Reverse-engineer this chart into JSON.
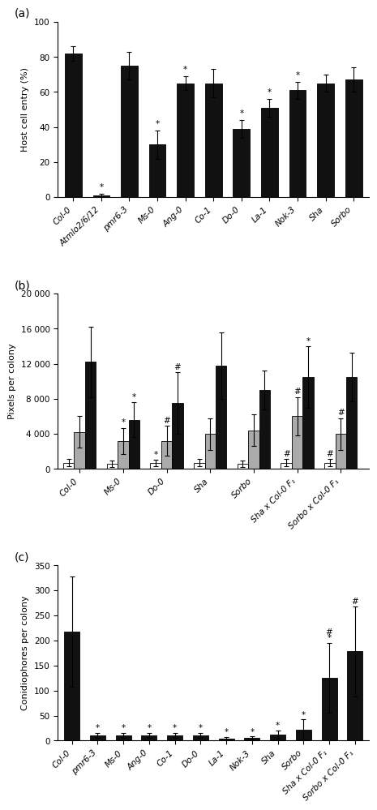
{
  "panel_a": {
    "categories": [
      "Col-0",
      "Atmlo2/6/12",
      "pmr6-3",
      "Ms-0",
      "Ang-0",
      "Co-1",
      "Do-0",
      "La-1",
      "Nok-3",
      "Sha",
      "Sorbo"
    ],
    "values": [
      82,
      1,
      75,
      30,
      65,
      65,
      39,
      51,
      61,
      65,
      67
    ],
    "errors": [
      4,
      1,
      8,
      8,
      4,
      8,
      5,
      5,
      5,
      5,
      7
    ],
    "ylabel": "Host cell entry (%)",
    "ylim": [
      0,
      100
    ],
    "yticks": [
      0,
      20,
      40,
      60,
      80,
      100
    ],
    "ast_symbols": [
      "",
      "*",
      "",
      "*",
      "*",
      "",
      "*",
      "*",
      "*",
      "",
      ""
    ]
  },
  "panel_b": {
    "categories": [
      "Col-0",
      "Ms-0",
      "Do-0",
      "Sha",
      "Sorbo",
      "Sha x Col-0 F₁",
      "Sorbo x Col-0 F₁"
    ],
    "values_white": [
      700,
      600,
      700,
      700,
      600,
      700,
      700
    ],
    "values_gray": [
      4200,
      3200,
      3200,
      4000,
      4400,
      6000,
      4000
    ],
    "values_black": [
      12200,
      5600,
      7500,
      11800,
      9000,
      10500,
      10500
    ],
    "errors_white": [
      400,
      350,
      350,
      400,
      400,
      400,
      400
    ],
    "errors_gray": [
      1800,
      1500,
      1700,
      1800,
      1800,
      2200,
      1800
    ],
    "errors_black": [
      4000,
      2000,
      3500,
      3800,
      2200,
      3500,
      2800
    ],
    "ylabel": "Pixels per colony",
    "ylim": [
      0,
      20000
    ],
    "yticks": [
      0,
      4000,
      8000,
      12000,
      16000,
      20000
    ],
    "ytick_labels": [
      "0",
      "4 000",
      "8 000",
      "12 000",
      "16 000",
      "20 000"
    ],
    "ast_black": [
      "",
      "*",
      "#",
      "",
      "",
      "*",
      ""
    ],
    "ast_gray": [
      "",
      "*",
      "#",
      "",
      "",
      "#",
      "#"
    ],
    "ast_white": [
      "",
      "",
      "*",
      "",
      "",
      "#",
      "#"
    ]
  },
  "panel_c": {
    "categories": [
      "Col-0",
      "pmr6-3",
      "Ms-0",
      "Ang-0",
      "Co-1",
      "Do-0",
      "La-1",
      "Nok-3",
      "Sha",
      "Sorbo",
      "Sha x Col-0 F₁",
      "Sorbo x Col-0 F₁"
    ],
    "values": [
      218,
      10,
      10,
      10,
      10,
      10,
      4,
      5,
      12,
      22,
      125,
      178
    ],
    "errors": [
      110,
      5,
      5,
      5,
      5,
      5,
      3,
      3,
      8,
      20,
      70,
      90
    ],
    "ylabel": "Conidiophores per colony",
    "ylim": [
      0,
      350
    ],
    "yticks": [
      0,
      50,
      100,
      150,
      200,
      250,
      300,
      350
    ],
    "ast_symbols": [
      "",
      "*",
      "*",
      "*",
      "*",
      "*",
      "*",
      "*",
      "*",
      "*",
      "*",
      "#"
    ],
    "ast2_symbols": [
      "",
      "",
      "",
      "",
      "",
      "",
      "",
      "",
      "",
      "",
      "#",
      ""
    ]
  },
  "bar_color_black": "#111111",
  "bar_color_gray": "#aaaaaa",
  "bar_color_white": "#ffffff",
  "figure_bg": "#ffffff",
  "font_size": 7.5,
  "label_font_size": 8
}
